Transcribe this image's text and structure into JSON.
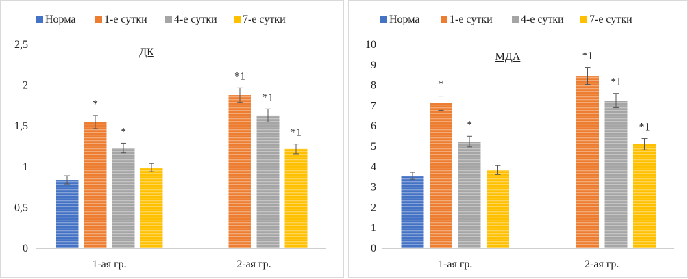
{
  "legend": [
    "Норма",
    "1-е сутки",
    "4-е сутки",
    "7-е сутки"
  ],
  "colors": {
    "Норма": "#4472c4",
    "1-е сутки": "#ed7d31",
    "4-е сутки": "#a5a5a5",
    "7-е сутки": "#ffc000"
  },
  "chart_data": [
    {
      "type": "bar",
      "title": "ДК",
      "categories": [
        "1-ая гр.",
        "2-ая гр."
      ],
      "ylim": [
        0,
        2.5
      ],
      "yticks": [
        "0",
        "0,5",
        "1",
        "1,5",
        "2",
        "2,5"
      ],
      "ytick_values": [
        0,
        0.5,
        1,
        1.5,
        2,
        2.5
      ],
      "grid": false,
      "legend_position": "top",
      "series": [
        {
          "name": "Норма",
          "values": [
            0.83,
            null
          ],
          "errors": [
            0.05,
            null
          ],
          "labels": [
            "",
            ""
          ]
        },
        {
          "name": "1-е сутки",
          "values": [
            1.54,
            1.87
          ],
          "errors": [
            0.08,
            0.09
          ],
          "labels": [
            "*",
            "*1"
          ]
        },
        {
          "name": "4-е сутки",
          "values": [
            1.22,
            1.62
          ],
          "errors": [
            0.06,
            0.08
          ],
          "labels": [
            "*",
            "*1"
          ]
        },
        {
          "name": "7-е сутки",
          "values": [
            0.98,
            1.21
          ],
          "errors": [
            0.05,
            0.06
          ],
          "labels": [
            "",
            "*1"
          ]
        }
      ]
    },
    {
      "type": "bar",
      "title": "МДА",
      "categories": [
        "1-ая гр.",
        "2-ая гр."
      ],
      "ylim": [
        0,
        10
      ],
      "yticks": [
        "0",
        "1",
        "2",
        "3",
        "4",
        "5",
        "6",
        "7",
        "8",
        "9",
        "10"
      ],
      "ytick_values": [
        0,
        1,
        2,
        3,
        4,
        5,
        6,
        7,
        8,
        9,
        10
      ],
      "grid": false,
      "legend_position": "top",
      "series": [
        {
          "name": "Норма",
          "values": [
            3.52,
            null
          ],
          "errors": [
            0.17,
            null
          ],
          "labels": [
            "",
            ""
          ]
        },
        {
          "name": "1-е сутки",
          "values": [
            7.08,
            8.42
          ],
          "errors": [
            0.35,
            0.42
          ],
          "labels": [
            "*",
            "*1"
          ]
        },
        {
          "name": "4-е сутки",
          "values": [
            5.2,
            7.21
          ],
          "errors": [
            0.26,
            0.35
          ],
          "labels": [
            "*",
            "*1"
          ]
        },
        {
          "name": "7-е сутки",
          "values": [
            3.8,
            5.07
          ],
          "errors": [
            0.22,
            0.28
          ],
          "labels": [
            "",
            "*1"
          ]
        }
      ]
    }
  ]
}
